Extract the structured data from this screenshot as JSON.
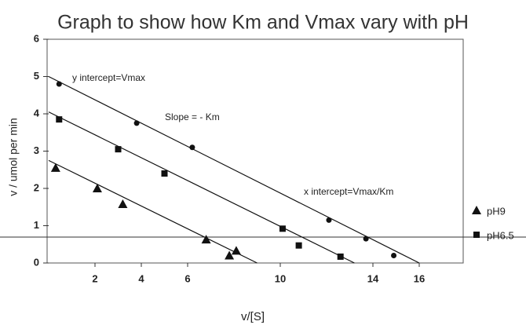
{
  "chart_data": {
    "type": "scatter",
    "title": "Graph to show how Km and Vmax vary with pH",
    "xlabel": "v/[S]",
    "ylabel": "v / umol per min",
    "annotations": [
      "y intercept=Vmax",
      "Slope = - Km",
      "x intercept=Vmax/Km"
    ],
    "xlim": [
      0,
      18
    ],
    "ylim": [
      0,
      6
    ],
    "xticks": [
      2,
      4,
      6,
      10,
      14,
      16
    ],
    "yticks": [
      0,
      1,
      2,
      3,
      4,
      5,
      6
    ],
    "series": [
      {
        "marker": "circle",
        "color": "#111",
        "x": [
          0.45,
          3.8,
          6.2,
          12.1,
          13.7,
          14.9
        ],
        "values": [
          4.8,
          3.75,
          3.1,
          1.15,
          0.65,
          0.2
        ],
        "fit_x": [
          0,
          16
        ],
        "fit_y": [
          5.0,
          0
        ]
      },
      {
        "name": "pH6.5",
        "marker": "square",
        "color": "#111",
        "x": [
          0.45,
          3.0,
          5.0,
          10.1,
          10.8,
          12.6
        ],
        "values": [
          3.85,
          3.05,
          2.4,
          0.92,
          0.47,
          0.17
        ],
        "fit_x": [
          0,
          13.2
        ],
        "fit_y": [
          4.05,
          0
        ]
      },
      {
        "name": "pH9",
        "marker": "triangle",
        "color": "#111",
        "x": [
          0.3,
          2.1,
          3.2,
          6.8,
          7.8,
          8.1
        ],
        "values": [
          2.55,
          2.0,
          1.58,
          0.63,
          0.2,
          0.33
        ],
        "fit_x": [
          0,
          9.0
        ],
        "fit_y": [
          2.75,
          0
        ]
      }
    ]
  }
}
